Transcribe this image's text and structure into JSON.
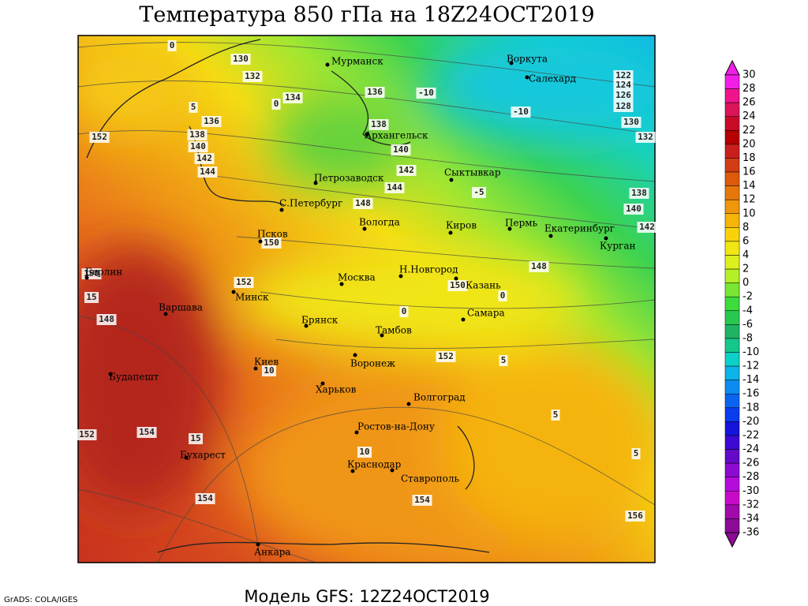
{
  "header": {
    "title": "Температура 850 гПа на 18Z24OCT2019"
  },
  "footer": {
    "model": "Модель GFS: 12Z24OCT2019",
    "credit": "GrADS: COLA/IGES"
  },
  "cities": [
    "Мурманск",
    "Воркута",
    "Салехард",
    "Архангельск",
    "Петрозаводск",
    "Сыктывкар",
    "С.Петербург",
    "Вологда",
    "Киров",
    "Пермь",
    "Екатеринбург",
    "Курган",
    "Псков",
    "Москва",
    "Н.Новгород",
    "Казань",
    "Берлин",
    "Варшава",
    "Минск",
    "Брянск",
    "Тамбов",
    "Самара",
    "Киев",
    "Воронеж",
    "Харьков",
    "Волгоград",
    "Будапешт",
    "Ростов-на-Дону",
    "Бухарест",
    "Краснодар",
    "Ставрополь",
    "Анкара"
  ],
  "contour_labels": [
    "130",
    "132",
    "134",
    "136",
    "138",
    "140",
    "142",
    "144",
    "152",
    "136",
    "138",
    "140",
    "142",
    "144",
    "148",
    "150",
    "152",
    "154",
    "154",
    "156",
    "152",
    "148",
    "150",
    "152",
    "154",
    "148",
    "150",
    "122",
    "124",
    "126",
    "128",
    "130",
    "132",
    "138",
    "140",
    "142",
    "0",
    "5",
    "0",
    "-10",
    "-10",
    "-5",
    "0",
    "0",
    "5",
    "10",
    "10",
    "15",
    "15",
    "5",
    "5"
  ],
  "colorbar": {
    "labels": [
      "30",
      "28",
      "26",
      "24",
      "22",
      "20",
      "18",
      "16",
      "14",
      "12",
      "10",
      "8",
      "6",
      "4",
      "2",
      "0",
      "-2",
      "-4",
      "-6",
      "-8",
      "-10",
      "-12",
      "-14",
      "-16",
      "-18",
      "-20",
      "-22",
      "-24",
      "-26",
      "-28",
      "-30",
      "-32",
      "-34",
      "-36"
    ],
    "colors": [
      "#f01ee6",
      "#f0148c",
      "#dc145a",
      "#c80a28",
      "#b40000",
      "#c81e1e",
      "#d23c14",
      "#dc5a0a",
      "#e6780a",
      "#f0960a",
      "#f5b40a",
      "#fad20a",
      "#f0e614",
      "#dcf01e",
      "#b4f028",
      "#78e632",
      "#3cdc3c",
      "#28c850",
      "#1eb464",
      "#14c88c",
      "#0ad2c8",
      "#0ab4e6",
      "#0a8cf0",
      "#0a64f0",
      "#0a3cf0",
      "#1414dc",
      "#3c0ad2",
      "#640ac8",
      "#8c0ad2",
      "#b40adc",
      "#c80ac8",
      "#a00aaa",
      "#8c0a96"
    ]
  }
}
